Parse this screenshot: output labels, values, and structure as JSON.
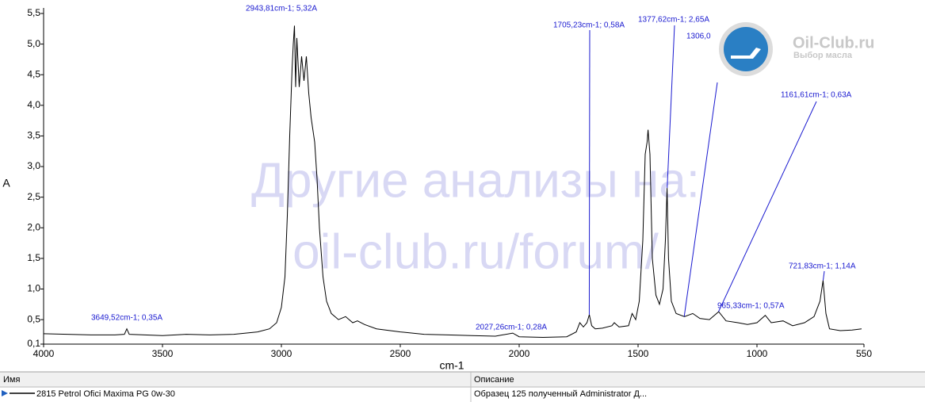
{
  "chart_data": {
    "type": "line",
    "xlabel": "cm-1",
    "ylabel": "A",
    "xlim": [
      4000,
      550
    ],
    "ylim": [
      0.1,
      5.5
    ],
    "xticks": [
      4000,
      3500,
      3000,
      2500,
      2000,
      1500,
      1000,
      550
    ],
    "yticks": [
      {
        "value": 0.1,
        "label": "0,1"
      },
      {
        "value": 0.5,
        "label": "0,5"
      },
      {
        "value": 1,
        "label": "1,0"
      },
      {
        "value": 1.5,
        "label": "1,5"
      },
      {
        "value": 2,
        "label": "2,0"
      },
      {
        "value": 2.5,
        "label": "2,5"
      },
      {
        "value": 3,
        "label": "3,0"
      },
      {
        "value": 3.5,
        "label": "3,5"
      },
      {
        "value": 4,
        "label": "4,0"
      },
      {
        "value": 4.5,
        "label": "4,5"
      },
      {
        "value": 5,
        "label": "5,0"
      },
      {
        "value": 5.5,
        "label": "5,5"
      }
    ],
    "color": "#000000",
    "x": [
      4000,
      3900,
      3800,
      3700,
      3660,
      3650,
      3640,
      3500,
      3400,
      3300,
      3200,
      3150,
      3100,
      3050,
      3020,
      3000,
      2985,
      2975,
      2965,
      2955,
      2950,
      2945,
      2940,
      2935,
      2925,
      2915,
      2905,
      2895,
      2885,
      2875,
      2860,
      2850,
      2840,
      2825,
      2810,
      2790,
      2760,
      2730,
      2700,
      2680,
      2650,
      2600,
      2500,
      2400,
      2300,
      2200,
      2100,
      2027,
      2000,
      1900,
      1800,
      1760,
      1745,
      1730,
      1715,
      1705,
      1695,
      1680,
      1650,
      1610,
      1600,
      1580,
      1540,
      1525,
      1510,
      1495,
      1480,
      1470,
      1462,
      1458,
      1450,
      1440,
      1425,
      1410,
      1395,
      1385,
      1378,
      1372,
      1360,
      1340,
      1305,
      1270,
      1240,
      1200,
      1161,
      1130,
      1080,
      1040,
      1000,
      965,
      940,
      890,
      850,
      800,
      760,
      735,
      722,
      710,
      695,
      650,
      600,
      560
    ],
    "values": [
      0.27,
      0.26,
      0.25,
      0.25,
      0.26,
      0.35,
      0.26,
      0.24,
      0.26,
      0.25,
      0.26,
      0.28,
      0.3,
      0.35,
      0.45,
      0.7,
      1.2,
      2.2,
      3.5,
      4.6,
      5.0,
      5.3,
      4.3,
      5.1,
      4.3,
      4.8,
      4.4,
      4.8,
      4.2,
      3.8,
      3.4,
      2.8,
      2.0,
      1.2,
      0.8,
      0.6,
      0.5,
      0.55,
      0.45,
      0.48,
      0.42,
      0.35,
      0.3,
      0.26,
      0.25,
      0.24,
      0.23,
      0.28,
      0.22,
      0.21,
      0.22,
      0.3,
      0.45,
      0.38,
      0.45,
      0.58,
      0.4,
      0.35,
      0.36,
      0.4,
      0.45,
      0.38,
      0.4,
      0.6,
      0.5,
      0.8,
      1.8,
      3.2,
      3.4,
      3.6,
      3.2,
      1.5,
      0.9,
      0.75,
      1.0,
      1.8,
      2.65,
      1.5,
      0.8,
      0.6,
      0.55,
      0.6,
      0.52,
      0.5,
      0.63,
      0.48,
      0.45,
      0.42,
      0.45,
      0.57,
      0.45,
      0.48,
      0.4,
      0.45,
      0.55,
      0.8,
      1.14,
      0.6,
      0.35,
      0.32,
      0.33,
      0.35
    ],
    "annotations": [
      {
        "text": "3649,52cm-1; 0,35A",
        "x": 3649.52,
        "y": 0.35
      },
      {
        "text": "2943,81cm-1; 5,32A",
        "x": 2943.81,
        "y": 5.32
      },
      {
        "text": "2027,26cm-1; 0,28A",
        "x": 2027.26,
        "y": 0.28
      },
      {
        "text": "1705,23cm-1; 0,58A",
        "x": 1705.23,
        "y": 0.58
      },
      {
        "text": "1377,62cm-1; 2,65A",
        "x": 1377.62,
        "y": 2.65
      },
      {
        "text": "1306,0",
        "x": 1306.0,
        "y": 0.55
      },
      {
        "text": "1161,61cm-1; 0,63A",
        "x": 1161.61,
        "y": 0.63
      },
      {
        "text": "965,33cm-1; 0,57A",
        "x": 965.33,
        "y": 0.57
      },
      {
        "text": "721,83cm-1; 1,14A",
        "x": 721.83,
        "y": 1.14
      }
    ]
  },
  "watermark": [
    "Другие анализы на:",
    "oil-club.ru/forum/"
  ],
  "logo": {
    "title": "Oil-Club.ru",
    "subtitle": "Выбор масла"
  },
  "table": {
    "columns": [
      "Имя",
      "Описание"
    ],
    "rows": [
      [
        "2815 Petrol Ofici Maxima PG 0w-30",
        "Образец 125 полученный Administrator Д..."
      ]
    ]
  }
}
